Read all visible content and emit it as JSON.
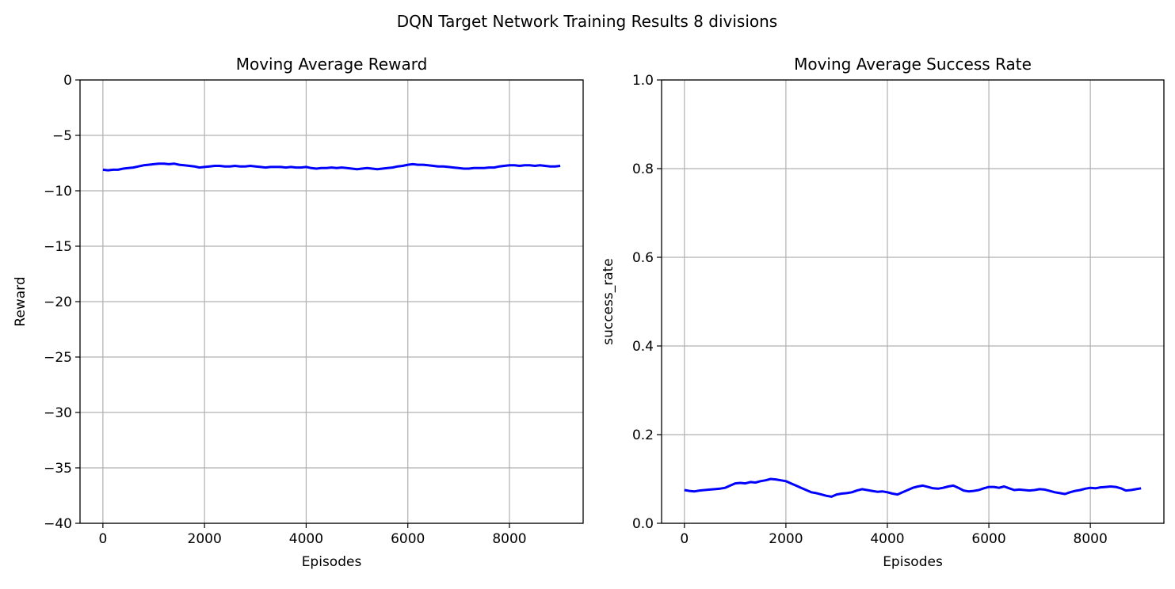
{
  "figure": {
    "suptitle": "DQN Target Network Training Results 8 divisions"
  },
  "chart_data": [
    {
      "type": "line",
      "title": "Moving Average Reward",
      "xlabel": "Episodes",
      "ylabel": "Reward",
      "xlim": [
        -450,
        9450
      ],
      "ylim": [
        -40,
        0
      ],
      "xticks": [
        0,
        2000,
        4000,
        6000,
        8000
      ],
      "yticks": [
        0,
        -5,
        -10,
        -15,
        -20,
        -25,
        -30,
        -35,
        -40
      ],
      "ytick_labels": [
        "0",
        "−5",
        "−10",
        "−15",
        "−20",
        "−25",
        "−30",
        "−35",
        "−40"
      ],
      "grid": true,
      "line_color": "#0000ff",
      "series": [
        {
          "x": [
            0,
            100,
            200,
            300,
            400,
            500,
            600,
            700,
            800,
            900,
            1000,
            1100,
            1200,
            1300,
            1400,
            1500,
            1600,
            1700,
            1800,
            1900,
            2000,
            2100,
            2200,
            2300,
            2400,
            2500,
            2600,
            2700,
            2800,
            2900,
            3000,
            3100,
            3200,
            3300,
            3400,
            3500,
            3600,
            3700,
            3800,
            3900,
            4000,
            4100,
            4200,
            4300,
            4400,
            4500,
            4600,
            4700,
            4800,
            4900,
            5000,
            5100,
            5200,
            5300,
            5400,
            5500,
            5600,
            5700,
            5800,
            5900,
            6000,
            6100,
            6200,
            6300,
            6400,
            6500,
            6600,
            6700,
            6800,
            6900,
            7000,
            7100,
            7200,
            7300,
            7400,
            7500,
            7600,
            7700,
            7800,
            7900,
            8000,
            8100,
            8200,
            8300,
            8400,
            8500,
            8600,
            8700,
            8800,
            8900,
            9000
          ],
          "y": [
            -8.1,
            -8.15,
            -8.1,
            -8.1,
            -8.0,
            -7.95,
            -7.9,
            -7.8,
            -7.7,
            -7.65,
            -7.6,
            -7.55,
            -7.55,
            -7.6,
            -7.55,
            -7.65,
            -7.7,
            -7.75,
            -7.8,
            -7.9,
            -7.85,
            -7.8,
            -7.75,
            -7.75,
            -7.8,
            -7.8,
            -7.75,
            -7.8,
            -7.8,
            -7.75,
            -7.8,
            -7.85,
            -7.9,
            -7.85,
            -7.85,
            -7.85,
            -7.9,
            -7.85,
            -7.9,
            -7.9,
            -7.85,
            -7.95,
            -8.0,
            -7.95,
            -7.95,
            -7.9,
            -7.95,
            -7.9,
            -7.95,
            -8.0,
            -8.05,
            -8.0,
            -7.95,
            -8.0,
            -8.05,
            -8.0,
            -7.95,
            -7.9,
            -7.8,
            -7.75,
            -7.65,
            -7.6,
            -7.65,
            -7.65,
            -7.7,
            -7.75,
            -7.8,
            -7.8,
            -7.85,
            -7.9,
            -7.95,
            -8.0,
            -8.0,
            -7.95,
            -7.95,
            -7.95,
            -7.9,
            -7.9,
            -7.8,
            -7.75,
            -7.7,
            -7.7,
            -7.75,
            -7.7,
            -7.7,
            -7.75,
            -7.7,
            -7.75,
            -7.8,
            -7.8,
            -7.75
          ]
        }
      ]
    },
    {
      "type": "line",
      "title": "Moving Average Success Rate",
      "xlabel": "Episodes",
      "ylabel": "success_rate",
      "xlim": [
        -450,
        9450
      ],
      "ylim": [
        0,
        1.0
      ],
      "xticks": [
        0,
        2000,
        4000,
        6000,
        8000
      ],
      "yticks": [
        0.0,
        0.2,
        0.4,
        0.6,
        0.8,
        1.0
      ],
      "ytick_labels": [
        "0.0",
        "0.2",
        "0.4",
        "0.6",
        "0.8",
        "1.0"
      ],
      "grid": true,
      "line_color": "#0000ff",
      "series": [
        {
          "x": [
            0,
            100,
            200,
            300,
            400,
            500,
            600,
            700,
            800,
            900,
            1000,
            1100,
            1200,
            1300,
            1400,
            1500,
            1600,
            1700,
            1800,
            1900,
            2000,
            2100,
            2200,
            2300,
            2400,
            2500,
            2600,
            2700,
            2800,
            2900,
            3000,
            3100,
            3200,
            3300,
            3400,
            3500,
            3600,
            3700,
            3800,
            3900,
            4000,
            4100,
            4200,
            4300,
            4400,
            4500,
            4600,
            4700,
            4800,
            4900,
            5000,
            5100,
            5200,
            5300,
            5400,
            5500,
            5600,
            5700,
            5800,
            5900,
            6000,
            6100,
            6200,
            6300,
            6400,
            6500,
            6600,
            6700,
            6800,
            6900,
            7000,
            7100,
            7200,
            7300,
            7400,
            7500,
            7600,
            7700,
            7800,
            7900,
            8000,
            8100,
            8200,
            8300,
            8400,
            8500,
            8600,
            8700,
            8800,
            8900,
            9000
          ],
          "y": [
            0.075,
            0.073,
            0.072,
            0.074,
            0.075,
            0.076,
            0.077,
            0.078,
            0.08,
            0.085,
            0.09,
            0.091,
            0.09,
            0.093,
            0.092,
            0.095,
            0.097,
            0.1,
            0.099,
            0.097,
            0.095,
            0.09,
            0.085,
            0.08,
            0.075,
            0.07,
            0.068,
            0.065,
            0.062,
            0.06,
            0.065,
            0.067,
            0.068,
            0.07,
            0.074,
            0.077,
            0.075,
            0.073,
            0.071,
            0.072,
            0.07,
            0.067,
            0.065,
            0.07,
            0.075,
            0.08,
            0.083,
            0.085,
            0.082,
            0.079,
            0.078,
            0.08,
            0.083,
            0.085,
            0.08,
            0.074,
            0.072,
            0.073,
            0.075,
            0.079,
            0.082,
            0.082,
            0.08,
            0.083,
            0.079,
            0.075,
            0.076,
            0.075,
            0.074,
            0.075,
            0.077,
            0.076,
            0.073,
            0.07,
            0.068,
            0.066,
            0.07,
            0.073,
            0.075,
            0.078,
            0.08,
            0.079,
            0.081,
            0.082,
            0.083,
            0.082,
            0.079,
            0.074,
            0.075,
            0.077,
            0.079
          ]
        }
      ]
    }
  ]
}
